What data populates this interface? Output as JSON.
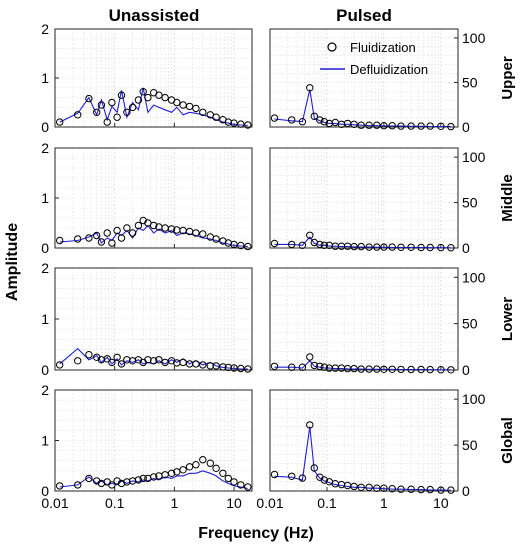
{
  "chart_data": {
    "type": "line",
    "columns": [
      {
        "title": "Unassisted",
        "y_axis_side": "left",
        "ylim": [
          0,
          2
        ],
        "yticks": [
          0,
          1,
          2
        ]
      },
      {
        "title": "Pulsed",
        "y_axis_side": "right",
        "ylim": [
          0,
          110
        ],
        "yticks": [
          0,
          50,
          100
        ]
      }
    ],
    "rows": [
      "Upper",
      "Middle",
      "Lower",
      "Global"
    ],
    "xlabel": "Frequency (Hz)",
    "ylabel": "Amplitude",
    "x_scale": "log",
    "xlim": [
      0.01,
      20
    ],
    "xticks": [
      0.01,
      0.1,
      1,
      10
    ],
    "xtick_labels": [
      "0.01",
      "0.1",
      "1",
      "10"
    ],
    "grid": true,
    "legend": {
      "position": "top-right",
      "panel": "Pulsed / Upper"
    },
    "series": [
      {
        "name": "Fluidization",
        "marker": "circle",
        "color": "#000000"
      },
      {
        "name": "Defluidization",
        "marker": "line",
        "color": "#1f1fd6"
      }
    ],
    "panels": [
      {
        "row": "Upper",
        "column": "Unassisted",
        "fluid_x": [
          0.012,
          0.024,
          0.037,
          0.05,
          0.06,
          0.075,
          0.09,
          0.11,
          0.13,
          0.16,
          0.2,
          0.25,
          0.3,
          0.36,
          0.45,
          0.55,
          0.7,
          0.9,
          1.1,
          1.4,
          1.8,
          2.3,
          3,
          4,
          5,
          6.5,
          8,
          10,
          13,
          17
        ],
        "fluid_y": [
          0.1,
          0.25,
          0.58,
          0.3,
          0.45,
          0.1,
          0.5,
          0.2,
          0.65,
          0.3,
          0.4,
          0.55,
          0.72,
          0.6,
          0.7,
          0.65,
          0.6,
          0.55,
          0.5,
          0.45,
          0.42,
          0.38,
          0.3,
          0.25,
          0.2,
          0.15,
          0.1,
          0.08,
          0.06,
          0.04
        ],
        "defluid_x": [
          0.012,
          0.024,
          0.037,
          0.05,
          0.06,
          0.075,
          0.09,
          0.11,
          0.13,
          0.16,
          0.2,
          0.25,
          0.3,
          0.36,
          0.45,
          0.55,
          0.7,
          0.9,
          1.1,
          1.4,
          1.8,
          2.3,
          3,
          4,
          5,
          6.5,
          8,
          10,
          13,
          17
        ],
        "defluid_y": [
          0.1,
          0.28,
          0.6,
          0.25,
          0.55,
          0.15,
          0.42,
          0.3,
          0.75,
          0.2,
          0.5,
          0.35,
          0.8,
          0.3,
          0.45,
          0.4,
          0.35,
          0.3,
          0.4,
          0.25,
          0.3,
          0.28,
          0.25,
          0.2,
          0.15,
          0.1,
          0.08,
          0.05,
          0.04,
          0.03
        ]
      },
      {
        "row": "Upper",
        "column": "Pulsed",
        "fluid_x": [
          0.012,
          0.024,
          0.037,
          0.05,
          0.06,
          0.075,
          0.09,
          0.11,
          0.14,
          0.18,
          0.23,
          0.3,
          0.4,
          0.55,
          0.75,
          1,
          1.4,
          2,
          3,
          4.5,
          6.5,
          10,
          15
        ],
        "fluid_y": [
          10,
          8,
          6,
          44,
          12,
          8,
          6,
          4,
          5,
          3,
          4,
          3,
          2,
          2,
          2,
          1.5,
          1.5,
          1,
          1,
          1,
          1,
          0.8,
          0.5
        ],
        "defluid_x": [
          0.012,
          0.024,
          0.037,
          0.05,
          0.06,
          0.075,
          0.09,
          0.11,
          0.14,
          0.18,
          0.23,
          0.3,
          0.4,
          0.55,
          0.75,
          1,
          1.4,
          2,
          3,
          4.5,
          6.5,
          10,
          15
        ],
        "defluid_y": [
          9,
          7,
          6,
          42,
          10,
          7,
          5,
          4,
          4,
          3,
          3,
          2.5,
          2,
          1.5,
          1.5,
          1.2,
          1,
          1,
          0.8,
          0.8,
          0.6,
          0.5,
          0.4
        ]
      },
      {
        "row": "Middle",
        "column": "Unassisted",
        "fluid_x": [
          0.012,
          0.024,
          0.037,
          0.05,
          0.06,
          0.075,
          0.09,
          0.11,
          0.13,
          0.16,
          0.2,
          0.25,
          0.3,
          0.36,
          0.45,
          0.55,
          0.7,
          0.9,
          1.1,
          1.4,
          1.8,
          2.3,
          3,
          4,
          5,
          6.5,
          8,
          10,
          13,
          17
        ],
        "fluid_y": [
          0.15,
          0.18,
          0.2,
          0.25,
          0.12,
          0.3,
          0.1,
          0.35,
          0.2,
          0.4,
          0.3,
          0.45,
          0.55,
          0.5,
          0.45,
          0.42,
          0.4,
          0.38,
          0.36,
          0.35,
          0.33,
          0.3,
          0.28,
          0.22,
          0.18,
          0.14,
          0.1,
          0.07,
          0.05,
          0.03
        ],
        "defluid_x": [
          0.012,
          0.024,
          0.037,
          0.05,
          0.06,
          0.075,
          0.09,
          0.11,
          0.13,
          0.16,
          0.2,
          0.25,
          0.3,
          0.36,
          0.45,
          0.55,
          0.7,
          0.9,
          1.1,
          1.4,
          1.8,
          2.3,
          3,
          4,
          5,
          6.5,
          8,
          10,
          13,
          17
        ],
        "defluid_y": [
          0.12,
          0.15,
          0.22,
          0.3,
          0.1,
          0.2,
          0.15,
          0.3,
          0.25,
          0.35,
          0.2,
          0.4,
          0.35,
          0.45,
          0.3,
          0.38,
          0.3,
          0.35,
          0.25,
          0.3,
          0.28,
          0.25,
          0.2,
          0.18,
          0.15,
          0.1,
          0.08,
          0.05,
          0.04,
          0.03
        ]
      },
      {
        "row": "Middle",
        "column": "Pulsed",
        "fluid_x": [
          0.012,
          0.024,
          0.037,
          0.05,
          0.06,
          0.075,
          0.09,
          0.11,
          0.14,
          0.18,
          0.23,
          0.3,
          0.4,
          0.55,
          0.75,
          1,
          1.4,
          2,
          3,
          4.5,
          6.5,
          10,
          15
        ],
        "fluid_y": [
          5,
          4,
          3,
          14,
          6,
          4,
          3,
          3,
          2,
          2,
          2,
          1.5,
          1.5,
          1,
          1,
          1,
          1,
          0.8,
          0.8,
          0.6,
          0.5,
          0.4,
          0.3
        ],
        "defluid_x": [
          0.012,
          0.024,
          0.037,
          0.05,
          0.06,
          0.075,
          0.09,
          0.11,
          0.14,
          0.18,
          0.23,
          0.3,
          0.4,
          0.55,
          0.75,
          1,
          1.4,
          2,
          3,
          4.5,
          6.5,
          10,
          15
        ],
        "defluid_y": [
          4,
          4,
          3,
          12,
          5,
          3,
          3,
          2,
          2,
          1.5,
          1.5,
          1.2,
          1,
          1,
          0.8,
          0.8,
          0.6,
          0.6,
          0.5,
          0.4,
          0.3,
          0.3,
          0.2
        ]
      },
      {
        "row": "Lower",
        "column": "Unassisted",
        "fluid_x": [
          0.012,
          0.024,
          0.037,
          0.05,
          0.06,
          0.075,
          0.09,
          0.11,
          0.13,
          0.16,
          0.2,
          0.25,
          0.3,
          0.36,
          0.45,
          0.55,
          0.7,
          0.9,
          1.1,
          1.4,
          1.8,
          2.3,
          3,
          4,
          5,
          6.5,
          8,
          10,
          13,
          17
        ],
        "fluid_y": [
          0.1,
          0.18,
          0.3,
          0.25,
          0.2,
          0.22,
          0.15,
          0.25,
          0.12,
          0.2,
          0.18,
          0.2,
          0.15,
          0.2,
          0.18,
          0.2,
          0.15,
          0.18,
          0.14,
          0.15,
          0.12,
          0.12,
          0.1,
          0.08,
          0.08,
          0.06,
          0.05,
          0.04,
          0.03,
          0.02
        ],
        "defluid_x": [
          0.012,
          0.024,
          0.037,
          0.05,
          0.06,
          0.075,
          0.09,
          0.11,
          0.13,
          0.16,
          0.2,
          0.25,
          0.3,
          0.36,
          0.45,
          0.55,
          0.7,
          0.9,
          1.1,
          1.4,
          1.8,
          2.3,
          3,
          4,
          5,
          6.5,
          8,
          10,
          13,
          17
        ],
        "defluid_y": [
          0.12,
          0.42,
          0.2,
          0.28,
          0.15,
          0.25,
          0.12,
          0.22,
          0.1,
          0.18,
          0.15,
          0.2,
          0.12,
          0.15,
          0.12,
          0.18,
          0.12,
          0.2,
          0.15,
          0.22,
          0.12,
          0.18,
          0.1,
          0.15,
          0.08,
          0.05,
          0.04,
          0.03,
          0.02,
          0.02
        ]
      },
      {
        "row": "Lower",
        "column": "Pulsed",
        "fluid_x": [
          0.012,
          0.024,
          0.037,
          0.05,
          0.06,
          0.075,
          0.09,
          0.11,
          0.14,
          0.18,
          0.23,
          0.3,
          0.4,
          0.55,
          0.75,
          1,
          1.4,
          2,
          3,
          4.5,
          6.5,
          10,
          15
        ],
        "fluid_y": [
          4,
          3,
          3,
          14,
          5,
          4,
          3,
          2,
          2,
          2,
          1.5,
          1.5,
          1,
          1,
          1,
          0.8,
          0.8,
          0.6,
          0.5,
          0.5,
          0.4,
          0.3,
          0.2
        ],
        "defluid_x": [
          0.012,
          0.024,
          0.037,
          0.05,
          0.06,
          0.075,
          0.09,
          0.11,
          0.14,
          0.18,
          0.23,
          0.3,
          0.4,
          0.55,
          0.75,
          1,
          1.4,
          2,
          3,
          4.5,
          6.5,
          10,
          15
        ],
        "defluid_y": [
          3,
          3,
          2,
          10,
          4,
          3,
          2,
          2,
          1.5,
          1.5,
          1.2,
          1,
          1,
          0.8,
          0.8,
          0.6,
          0.6,
          0.5,
          0.4,
          0.4,
          0.3,
          0.2,
          0.2
        ]
      },
      {
        "row": "Global",
        "column": "Unassisted",
        "fluid_x": [
          0.012,
          0.024,
          0.037,
          0.05,
          0.06,
          0.075,
          0.09,
          0.11,
          0.13,
          0.16,
          0.2,
          0.25,
          0.3,
          0.36,
          0.45,
          0.55,
          0.7,
          0.9,
          1.1,
          1.4,
          1.8,
          2.3,
          3,
          4,
          5,
          6.5,
          8,
          10,
          13,
          17
        ],
        "fluid_y": [
          0.1,
          0.12,
          0.25,
          0.2,
          0.15,
          0.18,
          0.12,
          0.2,
          0.15,
          0.18,
          0.2,
          0.22,
          0.25,
          0.25,
          0.28,
          0.3,
          0.32,
          0.35,
          0.38,
          0.42,
          0.48,
          0.52,
          0.62,
          0.55,
          0.45,
          0.35,
          0.25,
          0.18,
          0.12,
          0.08
        ],
        "defluid_x": [
          0.012,
          0.024,
          0.037,
          0.05,
          0.06,
          0.075,
          0.09,
          0.11,
          0.13,
          0.16,
          0.2,
          0.25,
          0.3,
          0.36,
          0.45,
          0.55,
          0.7,
          0.9,
          1.1,
          1.4,
          1.8,
          2.3,
          3,
          4,
          5,
          6.5,
          8,
          10,
          13,
          17
        ],
        "defluid_y": [
          0.08,
          0.12,
          0.28,
          0.15,
          0.2,
          0.12,
          0.15,
          0.12,
          0.2,
          0.15,
          0.2,
          0.18,
          0.22,
          0.2,
          0.25,
          0.22,
          0.28,
          0.25,
          0.3,
          0.3,
          0.35,
          0.35,
          0.4,
          0.35,
          0.3,
          0.2,
          0.15,
          0.1,
          0.08,
          0.05
        ]
      },
      {
        "row": "Global",
        "column": "Pulsed",
        "fluid_x": [
          0.012,
          0.024,
          0.037,
          0.05,
          0.06,
          0.075,
          0.09,
          0.11,
          0.14,
          0.18,
          0.23,
          0.3,
          0.4,
          0.55,
          0.75,
          1,
          1.4,
          2,
          3,
          4.5,
          6.5,
          10,
          15
        ],
        "fluid_y": [
          18,
          16,
          14,
          72,
          25,
          15,
          12,
          10,
          8,
          7,
          6,
          5,
          4,
          4,
          3,
          3,
          2.5,
          2,
          2,
          1.5,
          1.5,
          1,
          1
        ],
        "defluid_x": [
          0.012,
          0.024,
          0.037,
          0.05,
          0.06,
          0.075,
          0.09,
          0.11,
          0.14,
          0.18,
          0.23,
          0.3,
          0.4,
          0.55,
          0.75,
          1,
          1.4,
          2,
          3,
          4.5,
          6.5,
          10,
          15
        ],
        "defluid_y": [
          16,
          15,
          12,
          70,
          22,
          14,
          11,
          9,
          7,
          6,
          5,
          4,
          4,
          3,
          3,
          2.5,
          2,
          2,
          1.5,
          1.5,
          1,
          1,
          0.8
        ]
      }
    ]
  },
  "colors": {
    "fluidization": "#000000",
    "defluidization": "#1f1fd6",
    "grid": "#d9d9d9",
    "axis": "#262626"
  }
}
